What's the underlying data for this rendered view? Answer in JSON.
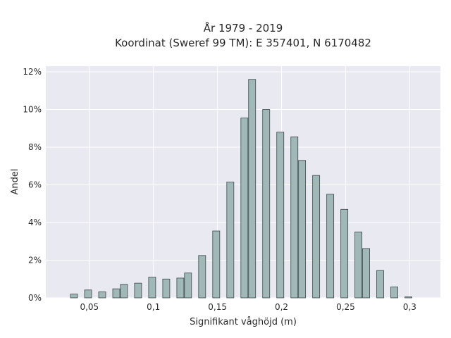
{
  "chart_data": {
    "type": "bar",
    "title_lines": [
      "År 1979 - 2019",
      "Koordinat (Sweref 99 TM): E 357401, N 6170482"
    ],
    "xlabel": "Signifikant våghöjd (m)",
    "ylabel": "Andel",
    "xlim": [
      0.016,
      0.324
    ],
    "ylim": [
      0,
      12.3
    ],
    "x_ticks": [
      0.05,
      0.1,
      0.15,
      0.2,
      0.25,
      0.3
    ],
    "x_tick_labels": [
      "0,05",
      "0,1",
      "0,15",
      "0,2",
      "0,25",
      "0,3"
    ],
    "y_ticks": [
      0,
      2,
      4,
      6,
      8,
      10,
      12
    ],
    "y_tick_labels": [
      "0%",
      "2%",
      "4%",
      "6%",
      "8%",
      "10%",
      "12%"
    ],
    "bar_width": 0.0055,
    "grid": true,
    "background": "#e9e9f1",
    "bar_color": "#a0b8b8",
    "bar_edge": "#3b4848",
    "series": [
      {
        "x": [
          0.038,
          0.049,
          0.06,
          0.071,
          0.077,
          0.088,
          0.099,
          0.11,
          0.121,
          0.127,
          0.138,
          0.149,
          0.16,
          0.171,
          0.177,
          0.188,
          0.199,
          0.21,
          0.216,
          0.227,
          0.238,
          0.249,
          0.26,
          0.266,
          0.277,
          0.288,
          0.299
        ],
        "values": [
          0.2,
          0.42,
          0.32,
          0.48,
          0.72,
          0.78,
          1.1,
          1.0,
          1.05,
          1.32,
          2.25,
          3.55,
          6.15,
          9.55,
          11.6,
          10.0,
          8.8,
          8.55,
          7.3,
          6.5,
          5.5,
          4.7,
          3.5,
          2.62,
          1.45,
          0.58,
          0.05
        ]
      }
    ]
  }
}
